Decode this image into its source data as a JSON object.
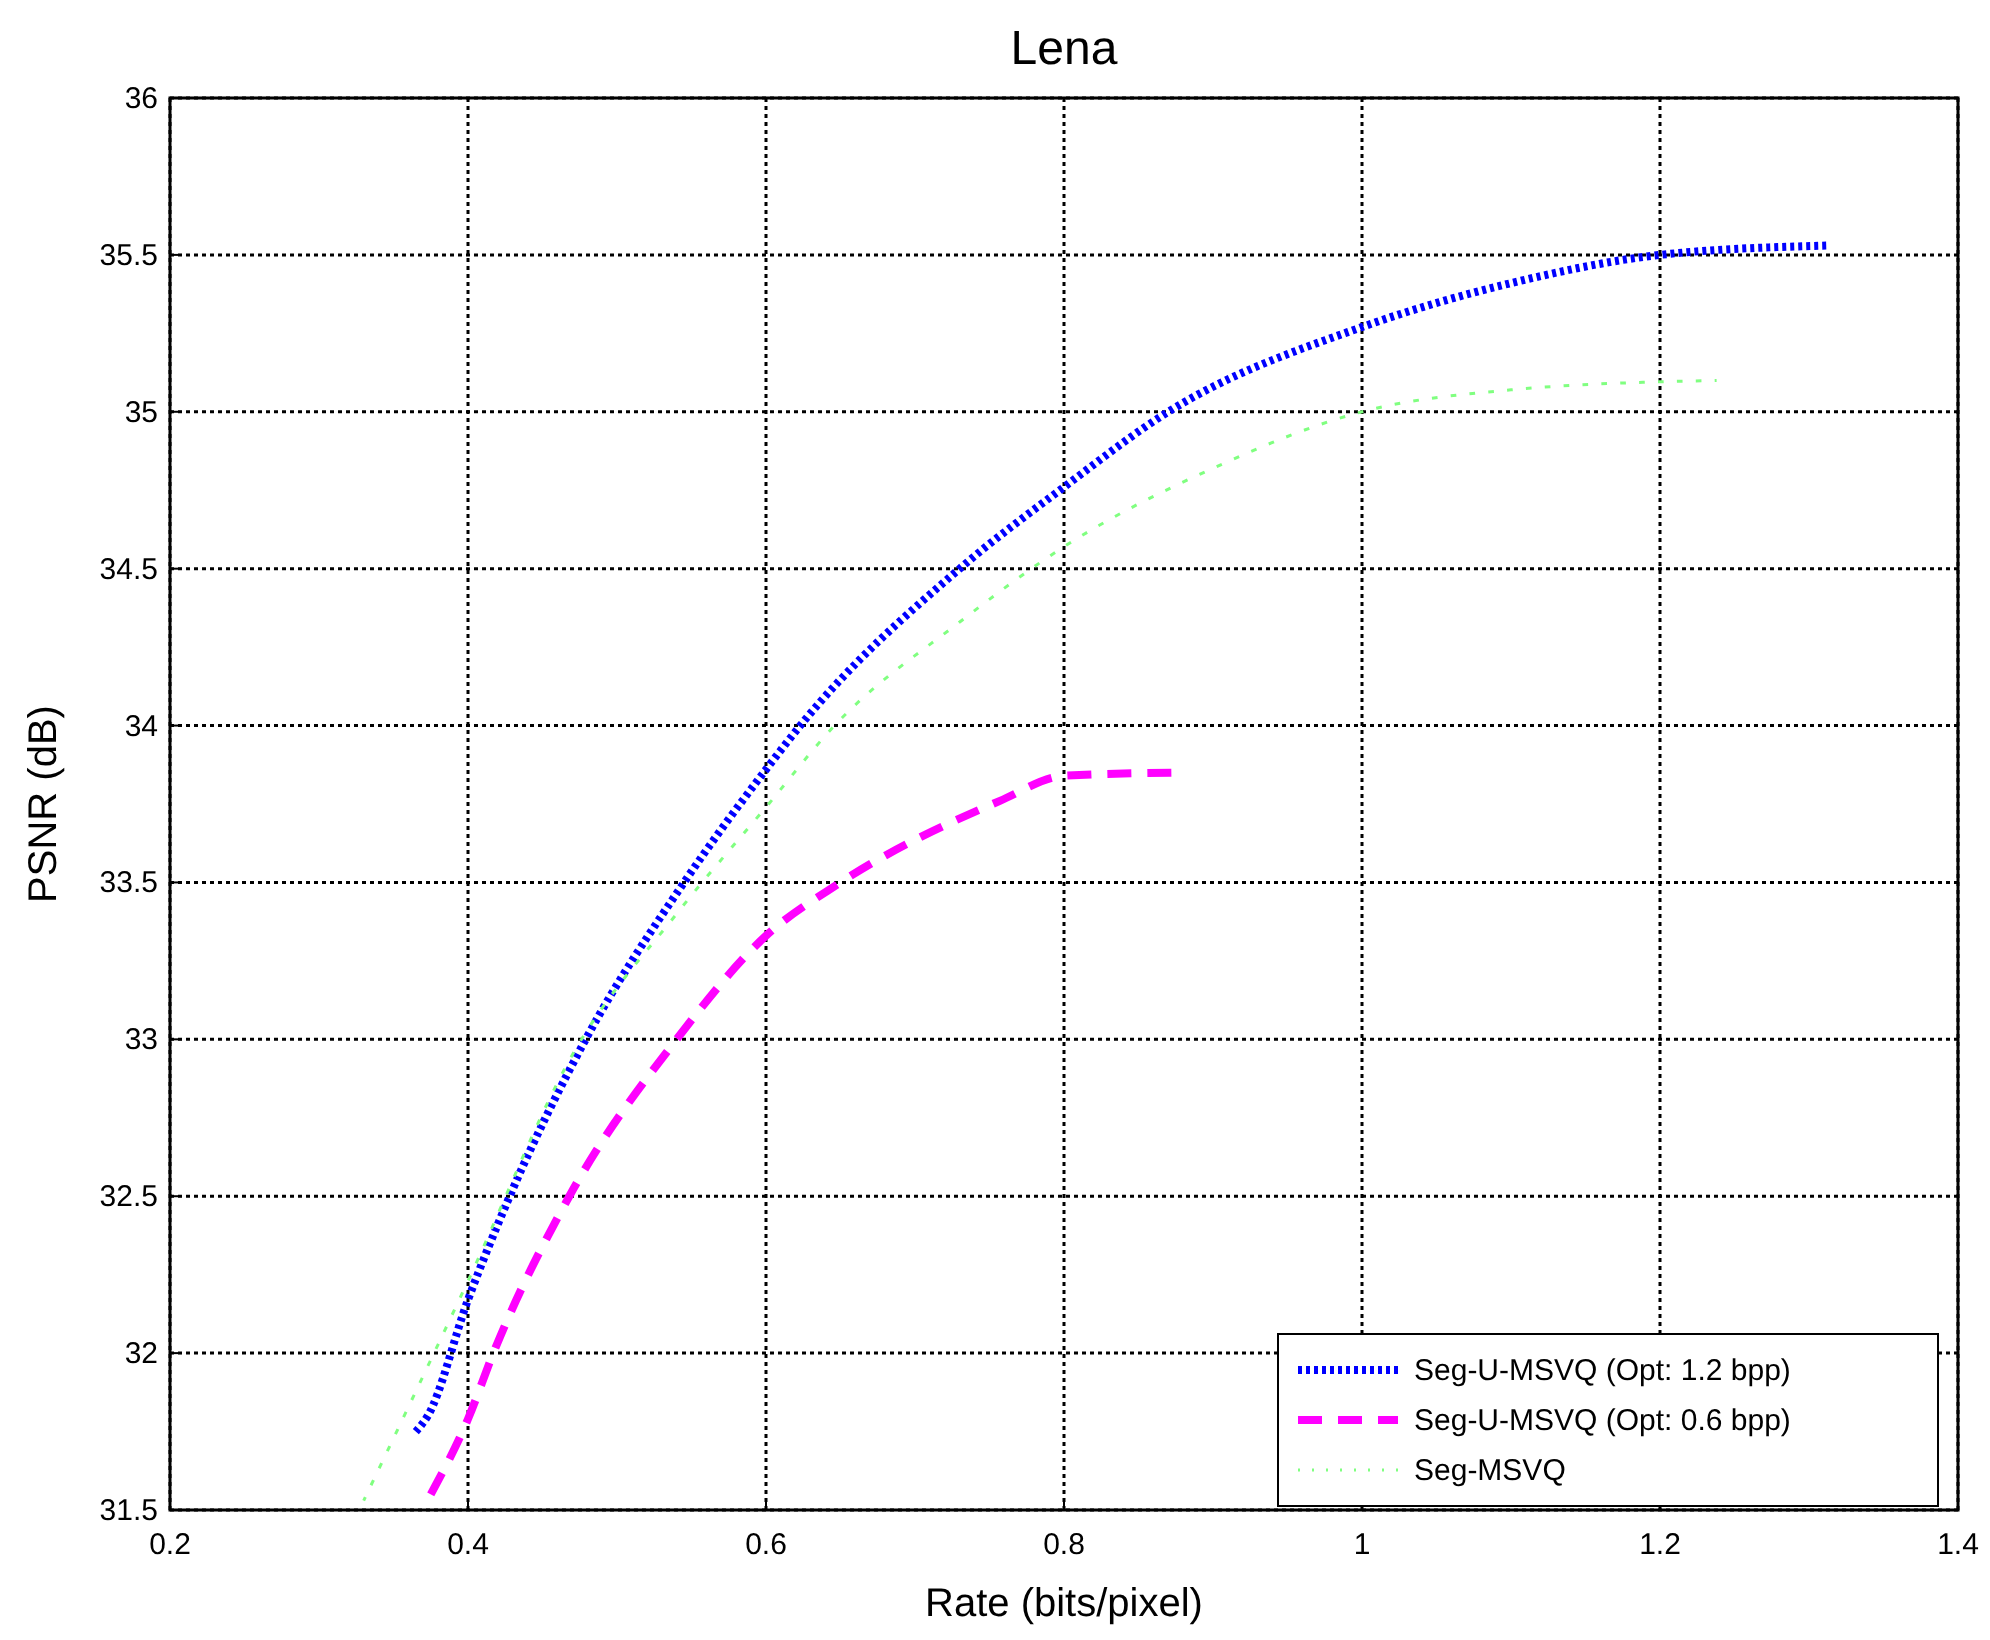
{
  "chart_data": {
    "type": "line",
    "title": "Lena",
    "xlabel": "Rate (bits/pixel)",
    "ylabel": "PSNR (dB)",
    "xlim": [
      0.2,
      1.4
    ],
    "xticks": [
      0.2,
      0.4,
      0.6,
      0.8,
      1,
      1.2,
      1.4
    ],
    "ylim": [
      31.5,
      36
    ],
    "yticks": [
      31.5,
      32,
      32.5,
      33,
      33.5,
      34,
      34.5,
      35,
      35.5,
      36
    ],
    "grid": true,
    "legend": "bottom right",
    "series": [
      {
        "name": "Seg-U-MSVQ (Opt: 1.2 bpp)",
        "color": "#0000ff",
        "line_style": "dotted",
        "x": [
          0.365,
          0.373,
          0.4,
          0.428,
          0.479,
          0.545,
          0.6,
          0.623,
          0.73,
          0.8,
          0.87,
          1.0,
          1.1,
          1.2,
          1.314
        ],
        "values": [
          31.75,
          31.8,
          32.17,
          32.5,
          33,
          33.5,
          33.86,
          34,
          34.5,
          34.76,
          35,
          35.27,
          35.41,
          35.5,
          35.53
        ]
      },
      {
        "name": "Seg-U-MSVQ (Opt: 0.6 bpp)",
        "color": "#ff00ff",
        "line_style": "dashed",
        "x": [
          0.375,
          0.4,
          0.417,
          0.468,
          0.54,
          0.6,
          0.65,
          0.757,
          0.8,
          0.875
        ],
        "values": [
          31.55,
          31.79,
          32,
          32.5,
          33,
          33.33,
          33.5,
          33.76,
          33.84,
          33.85
        ]
      },
      {
        "name": "Seg-MSVQ",
        "color": "#80ff80",
        "line_style": "dotted",
        "x": [
          0.33,
          0.4,
          0.47,
          0.54,
          0.6,
          0.646,
          0.73,
          0.8,
          0.9,
          1.0,
          1.1,
          1.238
        ],
        "values": [
          31.53,
          32.23,
          32.95,
          33.4,
          33.74,
          34,
          34.33,
          34.57,
          34.82,
          35,
          35.07,
          35.1
        ]
      }
    ]
  }
}
